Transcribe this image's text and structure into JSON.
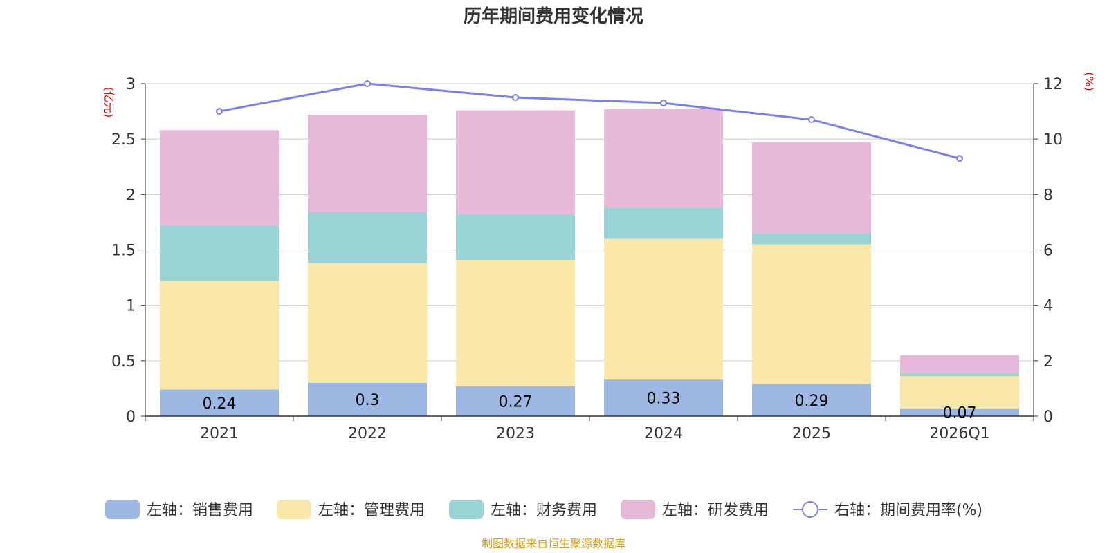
{
  "chart_data": {
    "type": "bar",
    "stacked": true,
    "title": "历年期间费用变化情况",
    "categories": [
      "2021",
      "2022",
      "2023",
      "2024",
      "2025",
      "2026Q1"
    ],
    "left_axis": {
      "label": "(亿元)",
      "range": [
        0,
        3
      ],
      "ticks": [
        "0",
        "0.5",
        "1",
        "1.5",
        "2",
        "2.5",
        "3"
      ],
      "tick_values": [
        0,
        0.5,
        1,
        1.5,
        2,
        2.5,
        3
      ]
    },
    "right_axis": {
      "label": "(%)",
      "range": [
        0,
        12
      ],
      "ticks": [
        "0",
        "2",
        "4",
        "6",
        "8",
        "10",
        "12"
      ],
      "tick_values": [
        0,
        2,
        4,
        6,
        8,
        10,
        12
      ]
    },
    "series": [
      {
        "name": "左轴：销售费用",
        "axis": "left",
        "color": "#9db8e3",
        "values": [
          0.24,
          0.3,
          0.27,
          0.33,
          0.29,
          0.07
        ],
        "labels": [
          "0.24",
          "0.3",
          "0.27",
          "0.33",
          "0.29",
          "0.07"
        ]
      },
      {
        "name": "左轴：管理费用",
        "axis": "left",
        "color": "#f8e7a8",
        "values": [
          0.98,
          1.08,
          1.14,
          1.27,
          1.26,
          0.29
        ]
      },
      {
        "name": "左轴：财务费用",
        "axis": "left",
        "color": "#9ad4d6",
        "values": [
          0.5,
          0.46,
          0.41,
          0.28,
          0.1,
          0.03
        ]
      },
      {
        "name": "左轴：研发费用",
        "axis": "left",
        "color": "#e8b8d8",
        "values": [
          0.86,
          0.88,
          0.94,
          0.89,
          0.82,
          0.16
        ]
      },
      {
        "name": "右轴：期间费用率(%)",
        "axis": "right",
        "type": "line",
        "color": "#7b7ff0",
        "values": [
          11.0,
          12.0,
          11.5,
          11.3,
          10.7,
          9.3
        ]
      }
    ],
    "grid": true,
    "legend_position": "bottom",
    "source": "制图数据来自恒生聚源数据库"
  }
}
